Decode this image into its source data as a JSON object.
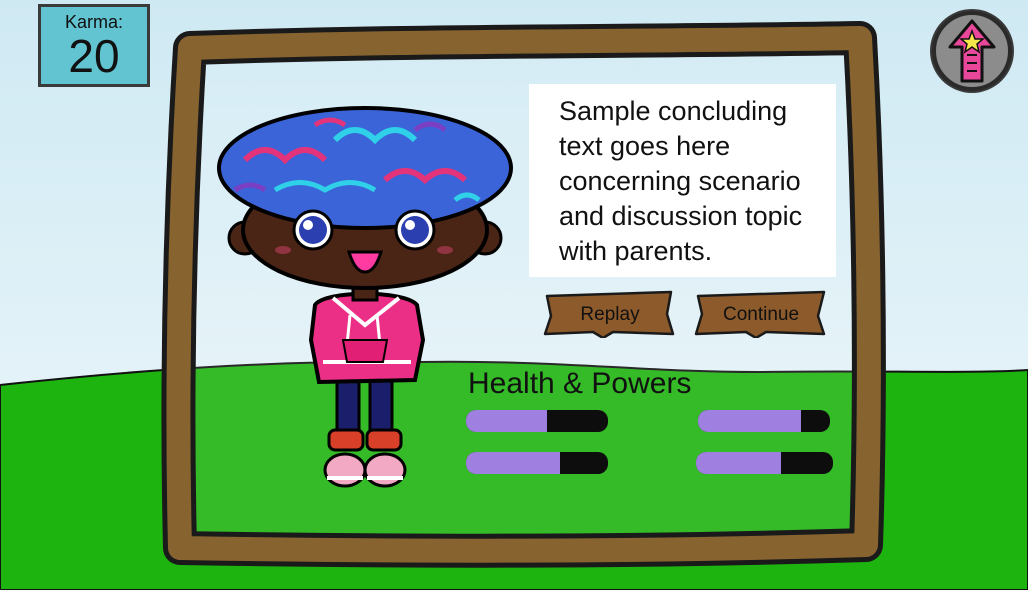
{
  "hud": {
    "karma_label": "Karma:",
    "karma_value": "20",
    "home_button_icon": "up-arrow-star-icon"
  },
  "dialog": {
    "text_lines": [
      "Sample concluding",
      "text goes here",
      "concerning scenario",
      "and discussion topic",
      "with parents."
    ]
  },
  "buttons": {
    "replay_label": "Replay",
    "continue_label": "Continue"
  },
  "health_powers": {
    "title": "Health & Powers",
    "bars": [
      {
        "fill_fraction": 0.57
      },
      {
        "fill_fraction": 0.78
      },
      {
        "fill_fraction": 0.66
      },
      {
        "fill_fraction": 0.62
      }
    ]
  },
  "colors": {
    "sky": "#cde9f2",
    "grass": "#1db40f",
    "frame": "#8d6730",
    "karma_box": "#62c3d1",
    "bar_fill": "#9f7fe0",
    "plank": "#8d5a2b",
    "hoodie": "#ec2f86",
    "hair_blue": "#3b64d8",
    "skin": "#4a2414"
  }
}
